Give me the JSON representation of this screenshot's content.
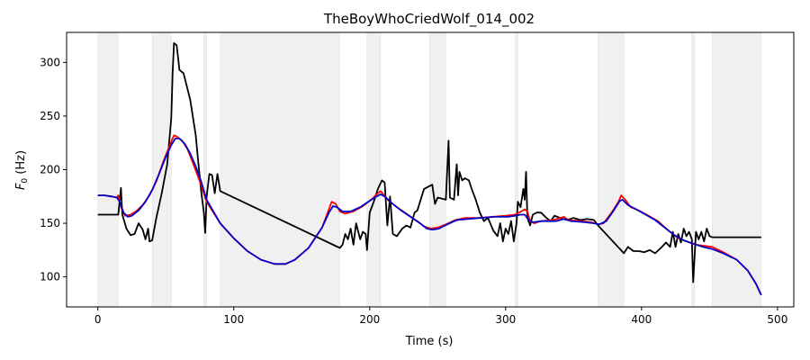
{
  "chart_data": {
    "type": "line",
    "title": "TheBoyWhoCriedWolf_014_002",
    "xlabel": "Time (s)",
    "ylabel_main": "F",
    "ylabel_sub": "0",
    "ylabel_unit": " (Hz)",
    "xlim": [
      -23,
      512
    ],
    "ylim": [
      72,
      328
    ],
    "xticks": [
      0,
      100,
      200,
      300,
      400,
      500
    ],
    "yticks": [
      100,
      150,
      200,
      250,
      300
    ],
    "grid": false,
    "legend": "none",
    "shaded_regions": [
      [
        0,
        15
      ],
      [
        40,
        54
      ],
      [
        78,
        80
      ],
      [
        90,
        178
      ],
      [
        198,
        208
      ],
      [
        244,
        256
      ],
      [
        307,
        309
      ],
      [
        368,
        387
      ],
      [
        437,
        439
      ],
      [
        452,
        488
      ]
    ],
    "shade_color": "#f0f0f0",
    "series": [
      {
        "color": "#000000",
        "points": [
          [
            0,
            158
          ],
          [
            15,
            158
          ],
          [
            17,
            183
          ],
          [
            18,
            158
          ],
          [
            21,
            145
          ],
          [
            24,
            139
          ],
          [
            27,
            140
          ],
          [
            30,
            150
          ],
          [
            33,
            144
          ],
          [
            35,
            135
          ],
          [
            37,
            145
          ],
          [
            38,
            133
          ],
          [
            40,
            134
          ],
          [
            43,
            155
          ],
          [
            47,
            178
          ],
          [
            51,
            205
          ],
          [
            54,
            248
          ],
          [
            55,
            290
          ],
          [
            56,
            318
          ],
          [
            58,
            316
          ],
          [
            60,
            293
          ],
          [
            63,
            290
          ],
          [
            65,
            280
          ],
          [
            68,
            265
          ],
          [
            72,
            232
          ],
          [
            74,
            205
          ],
          [
            76,
            180
          ],
          [
            78,
            160
          ],
          [
            79,
            141
          ],
          [
            80,
            175
          ],
          [
            82,
            196
          ],
          [
            84,
            195
          ],
          [
            86,
            178
          ],
          [
            88,
            196
          ],
          [
            90,
            180
          ],
          [
            178,
            127
          ],
          [
            180,
            130
          ],
          [
            182,
            140
          ],
          [
            184,
            135
          ],
          [
            186,
            145
          ],
          [
            188,
            130
          ],
          [
            190,
            150
          ],
          [
            193,
            135
          ],
          [
            195,
            142
          ],
          [
            197,
            140
          ],
          [
            198,
            125
          ],
          [
            200,
            160
          ],
          [
            203,
            170
          ],
          [
            206,
            182
          ],
          [
            209,
            190
          ],
          [
            211,
            188
          ],
          [
            213,
            148
          ],
          [
            215,
            175
          ],
          [
            217,
            140
          ],
          [
            220,
            138
          ],
          [
            224,
            145
          ],
          [
            227,
            148
          ],
          [
            230,
            146
          ],
          [
            233,
            160
          ],
          [
            235,
            162
          ],
          [
            237,
            170
          ],
          [
            240,
            182
          ],
          [
            243,
            184
          ],
          [
            246,
            186
          ],
          [
            248,
            168
          ],
          [
            250,
            174
          ],
          [
            256,
            172
          ],
          [
            258,
            227
          ],
          [
            259,
            174
          ],
          [
            262,
            172
          ],
          [
            264,
            205
          ],
          [
            265,
            176
          ],
          [
            266,
            198
          ],
          [
            268,
            190
          ],
          [
            270,
            192
          ],
          [
            273,
            190
          ],
          [
            275,
            182
          ],
          [
            278,
            172
          ],
          [
            281,
            160
          ],
          [
            284,
            152
          ],
          [
            287,
            155
          ],
          [
            289,
            149
          ],
          [
            291,
            143
          ],
          [
            294,
            138
          ],
          [
            296,
            150
          ],
          [
            298,
            133
          ],
          [
            300,
            145
          ],
          [
            302,
            140
          ],
          [
            304,
            152
          ],
          [
            306,
            133
          ],
          [
            308,
            150
          ],
          [
            309,
            170
          ],
          [
            311,
            165
          ],
          [
            313,
            182
          ],
          [
            314,
            172
          ],
          [
            315,
            198
          ],
          [
            316,
            155
          ],
          [
            318,
            148
          ],
          [
            320,
            158
          ],
          [
            323,
            160
          ],
          [
            326,
            160
          ],
          [
            330,
            155
          ],
          [
            333,
            152
          ],
          [
            336,
            157
          ],
          [
            340,
            155
          ],
          [
            345,
            153
          ],
          [
            350,
            155
          ],
          [
            355,
            153
          ],
          [
            360,
            154
          ],
          [
            365,
            153
          ],
          [
            368,
            148
          ],
          [
            387,
            122
          ],
          [
            390,
            128
          ],
          [
            394,
            124
          ],
          [
            398,
            124
          ],
          [
            402,
            123
          ],
          [
            406,
            125
          ],
          [
            410,
            122
          ],
          [
            415,
            128
          ],
          [
            418,
            132
          ],
          [
            421,
            128
          ],
          [
            423,
            142
          ],
          [
            425,
            128
          ],
          [
            427,
            140
          ],
          [
            429,
            132
          ],
          [
            431,
            145
          ],
          [
            433,
            138
          ],
          [
            435,
            142
          ],
          [
            437,
            135
          ],
          [
            438,
            95
          ],
          [
            440,
            142
          ],
          [
            442,
            135
          ],
          [
            444,
            142
          ],
          [
            446,
            133
          ],
          [
            448,
            145
          ],
          [
            450,
            138
          ],
          [
            452,
            137
          ],
          [
            488,
            137
          ]
        ]
      },
      {
        "color": "#ff0000",
        "points": [
          [
            0,
            176
          ],
          [
            5,
            176
          ],
          [
            10,
            175
          ],
          [
            14,
            174
          ],
          [
            15,
            176
          ],
          [
            17,
            165
          ],
          [
            20,
            157
          ],
          [
            24,
            158
          ],
          [
            28,
            161
          ],
          [
            33,
            167
          ],
          [
            38,
            176
          ],
          [
            43,
            189
          ],
          [
            48,
            207
          ],
          [
            52,
            220
          ],
          [
            54,
            226
          ],
          [
            56,
            232
          ],
          [
            58,
            231
          ],
          [
            62,
            227
          ],
          [
            66,
            219
          ],
          [
            70,
            206
          ],
          [
            75,
            189
          ],
          [
            80,
            170
          ],
          [
            90,
            150
          ],
          [
            100,
            136
          ],
          [
            110,
            124
          ],
          [
            120,
            116
          ],
          [
            130,
            112
          ],
          [
            138,
            112
          ],
          [
            145,
            116
          ],
          [
            155,
            127
          ],
          [
            165,
            146
          ],
          [
            170,
            163
          ],
          [
            172,
            170
          ],
          [
            175,
            168
          ],
          [
            178,
            161
          ],
          [
            182,
            159
          ],
          [
            188,
            161
          ],
          [
            195,
            166
          ],
          [
            202,
            173
          ],
          [
            206,
            178
          ],
          [
            208,
            180
          ],
          [
            210,
            177
          ],
          [
            214,
            171
          ],
          [
            220,
            165
          ],
          [
            228,
            158
          ],
          [
            235,
            152
          ],
          [
            240,
            147
          ],
          [
            245,
            145
          ],
          [
            250,
            146
          ],
          [
            256,
            149
          ],
          [
            263,
            153
          ],
          [
            270,
            155
          ],
          [
            280,
            155
          ],
          [
            290,
            156
          ],
          [
            300,
            157
          ],
          [
            307,
            158
          ],
          [
            310,
            160
          ],
          [
            314,
            163
          ],
          [
            316,
            161
          ],
          [
            318,
            152
          ],
          [
            321,
            150
          ],
          [
            326,
            152
          ],
          [
            335,
            153
          ],
          [
            343,
            156
          ],
          [
            346,
            153
          ],
          [
            355,
            152
          ],
          [
            363,
            151
          ],
          [
            368,
            149
          ],
          [
            372,
            150
          ],
          [
            378,
            160
          ],
          [
            383,
            170
          ],
          [
            385,
            176
          ],
          [
            388,
            172
          ],
          [
            392,
            165
          ],
          [
            398,
            162
          ],
          [
            405,
            157
          ],
          [
            412,
            152
          ],
          [
            419,
            144
          ],
          [
            426,
            137
          ],
          [
            433,
            133
          ],
          [
            440,
            130
          ],
          [
            446,
            129
          ],
          [
            452,
            128
          ],
          [
            460,
            123
          ],
          [
            470,
            116
          ],
          [
            478,
            106
          ],
          [
            484,
            94
          ],
          [
            488,
            83
          ]
        ]
      },
      {
        "color": "#0000cc",
        "points": [
          [
            0,
            176
          ],
          [
            5,
            176
          ],
          [
            10,
            175
          ],
          [
            14,
            174
          ],
          [
            16,
            170
          ],
          [
            19,
            160
          ],
          [
            22,
            156
          ],
          [
            25,
            157
          ],
          [
            30,
            162
          ],
          [
            35,
            170
          ],
          [
            40,
            181
          ],
          [
            45,
            196
          ],
          [
            50,
            212
          ],
          [
            54,
            223
          ],
          [
            57,
            229
          ],
          [
            60,
            229
          ],
          [
            64,
            224
          ],
          [
            68,
            215
          ],
          [
            72,
            203
          ],
          [
            76,
            189
          ],
          [
            80,
            172
          ],
          [
            90,
            150
          ],
          [
            100,
            136
          ],
          [
            110,
            124
          ],
          [
            120,
            116
          ],
          [
            130,
            112
          ],
          [
            138,
            112
          ],
          [
            145,
            116
          ],
          [
            155,
            127
          ],
          [
            165,
            146
          ],
          [
            170,
            160
          ],
          [
            173,
            166
          ],
          [
            176,
            165
          ],
          [
            180,
            161
          ],
          [
            186,
            161
          ],
          [
            193,
            165
          ],
          [
            200,
            171
          ],
          [
            205,
            175
          ],
          [
            208,
            177
          ],
          [
            211,
            175
          ],
          [
            216,
            169
          ],
          [
            222,
            163
          ],
          [
            230,
            156
          ],
          [
            237,
            150
          ],
          [
            242,
            145
          ],
          [
            246,
            144
          ],
          [
            251,
            145
          ],
          [
            257,
            149
          ],
          [
            264,
            153
          ],
          [
            272,
            154
          ],
          [
            282,
            155
          ],
          [
            292,
            156
          ],
          [
            302,
            156
          ],
          [
            307,
            157
          ],
          [
            311,
            158
          ],
          [
            314,
            158
          ],
          [
            317,
            153
          ],
          [
            320,
            151
          ],
          [
            327,
            152
          ],
          [
            337,
            152
          ],
          [
            343,
            154
          ],
          [
            348,
            152
          ],
          [
            358,
            151
          ],
          [
            365,
            150
          ],
          [
            369,
            149
          ],
          [
            374,
            152
          ],
          [
            379,
            161
          ],
          [
            384,
            171
          ],
          [
            386,
            172
          ],
          [
            390,
            167
          ],
          [
            396,
            163
          ],
          [
            403,
            158
          ],
          [
            410,
            153
          ],
          [
            417,
            146
          ],
          [
            424,
            139
          ],
          [
            431,
            134
          ],
          [
            438,
            131
          ],
          [
            445,
            128
          ],
          [
            452,
            126
          ],
          [
            460,
            122
          ],
          [
            470,
            116
          ],
          [
            478,
            106
          ],
          [
            484,
            94
          ],
          [
            488,
            83
          ]
        ]
      }
    ]
  }
}
